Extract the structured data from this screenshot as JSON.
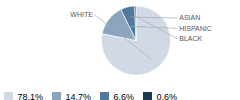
{
  "chart_data": {
    "type": "pie",
    "categories": [
      "WHITE",
      "HISPANIC",
      "ASIAN",
      "BLACK"
    ],
    "values": [
      78.1,
      14.7,
      6.6,
      0.6
    ],
    "value_labels": [
      "78.1%",
      "14.7%",
      "6.6%",
      "0.6%"
    ],
    "colors": [
      "#d0d9e4",
      "#8ca5be",
      "#4d7a9e",
      "#1c3a52"
    ],
    "legend": "lower left"
  }
}
